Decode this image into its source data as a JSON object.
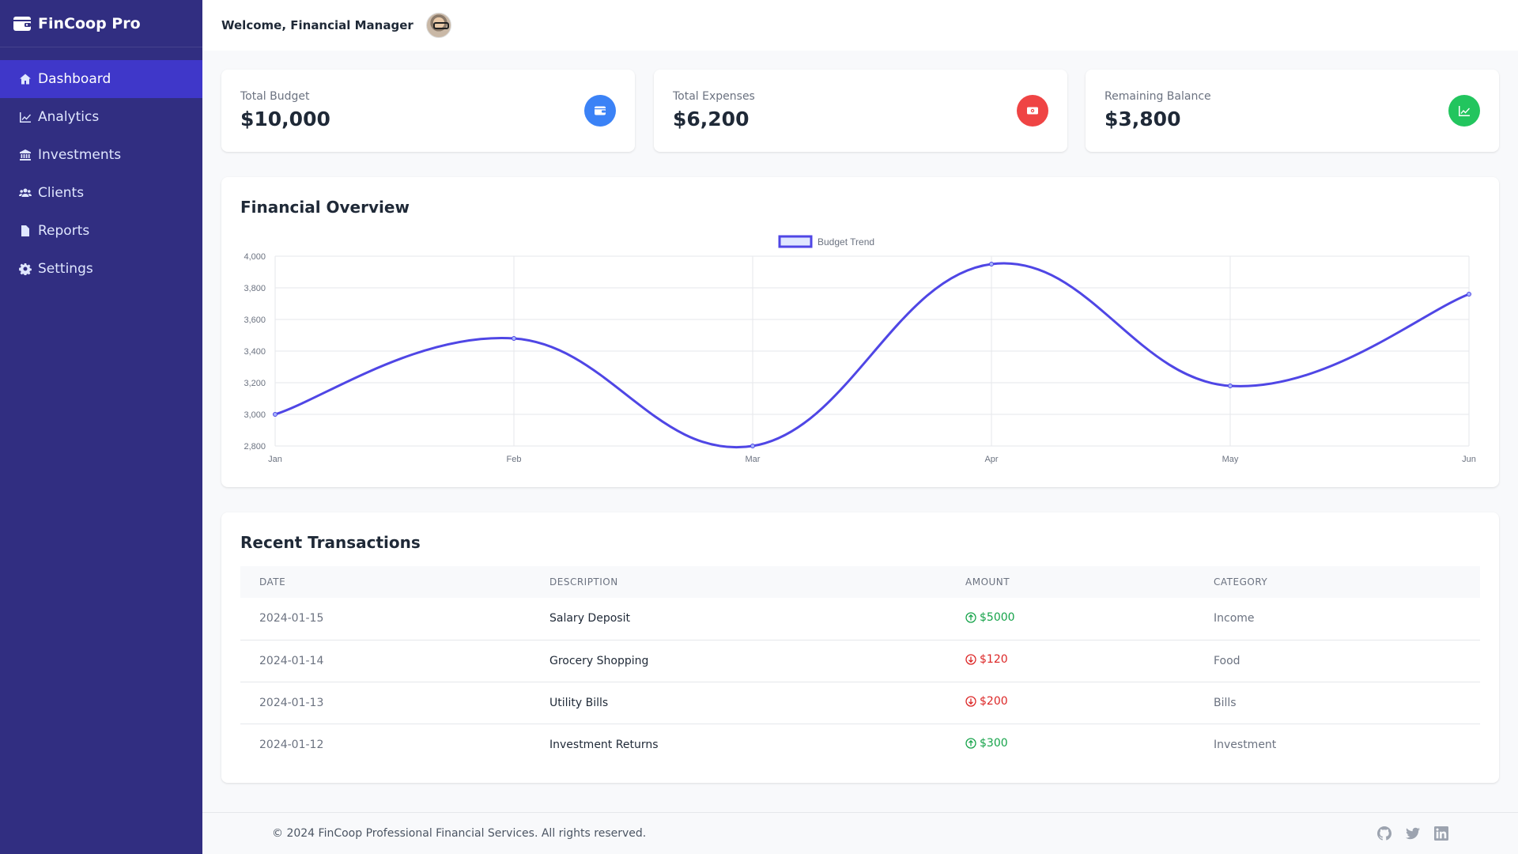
{
  "brand": {
    "name": "FinCoop Pro",
    "icon": "wallet-icon"
  },
  "sidebar": {
    "items": [
      {
        "label": "Dashboard",
        "icon": "home-icon",
        "active": true
      },
      {
        "label": "Analytics",
        "icon": "chart-line-icon"
      },
      {
        "label": "Investments",
        "icon": "bank-icon"
      },
      {
        "label": "Clients",
        "icon": "users-icon"
      },
      {
        "label": "Reports",
        "icon": "file-icon"
      },
      {
        "label": "Settings",
        "icon": "gear-icon"
      }
    ]
  },
  "header": {
    "welcome": "Welcome, Financial Manager",
    "avatar": "avatar"
  },
  "stats": [
    {
      "label": "Total Budget",
      "value": "$10,000",
      "icon": "wallet-icon",
      "color": "#3b82f6"
    },
    {
      "label": "Total Expenses",
      "value": "$6,200",
      "icon": "money-bill-icon",
      "color": "#ef4444"
    },
    {
      "label": "Remaining Balance",
      "value": "$3,800",
      "icon": "chart-line-icon",
      "color": "#22c55e"
    }
  ],
  "overview": {
    "title": "Financial Overview"
  },
  "chart_data": {
    "type": "line",
    "title": "",
    "categories": [
      "Jan",
      "Feb",
      "Mar",
      "Apr",
      "May",
      "Jun"
    ],
    "series": [
      {
        "name": "Budget Trend",
        "values": [
          3000,
          3480,
          2800,
          3950,
          3180,
          3760
        ],
        "color": "#4f46e5"
      }
    ],
    "ylim": [
      2800,
      4000
    ],
    "yticks": [
      "2,800",
      "3,000",
      "3,200",
      "3,400",
      "3,600",
      "3,800",
      "4,000"
    ],
    "grid": true,
    "legend": "top-center",
    "xlabel": "",
    "ylabel": ""
  },
  "transactions": {
    "title": "Recent Transactions",
    "headers": [
      "Date",
      "Description",
      "Amount",
      "Category"
    ],
    "rows": [
      {
        "date": "2024-01-15",
        "description": "Salary Deposit",
        "amount": "$5000",
        "direction": "in",
        "category": "Income"
      },
      {
        "date": "2024-01-14",
        "description": "Grocery Shopping",
        "amount": "$120",
        "direction": "out",
        "category": "Food"
      },
      {
        "date": "2024-01-13",
        "description": "Utility Bills",
        "amount": "$200",
        "direction": "out",
        "category": "Bills"
      },
      {
        "date": "2024-01-12",
        "description": "Investment Returns",
        "amount": "$300",
        "direction": "in",
        "category": "Investment"
      }
    ]
  },
  "footer": {
    "copyright": "© 2024 FinCoop Professional Financial Services. All rights reserved.",
    "social": [
      "github-icon",
      "twitter-icon",
      "linkedin-icon"
    ]
  }
}
